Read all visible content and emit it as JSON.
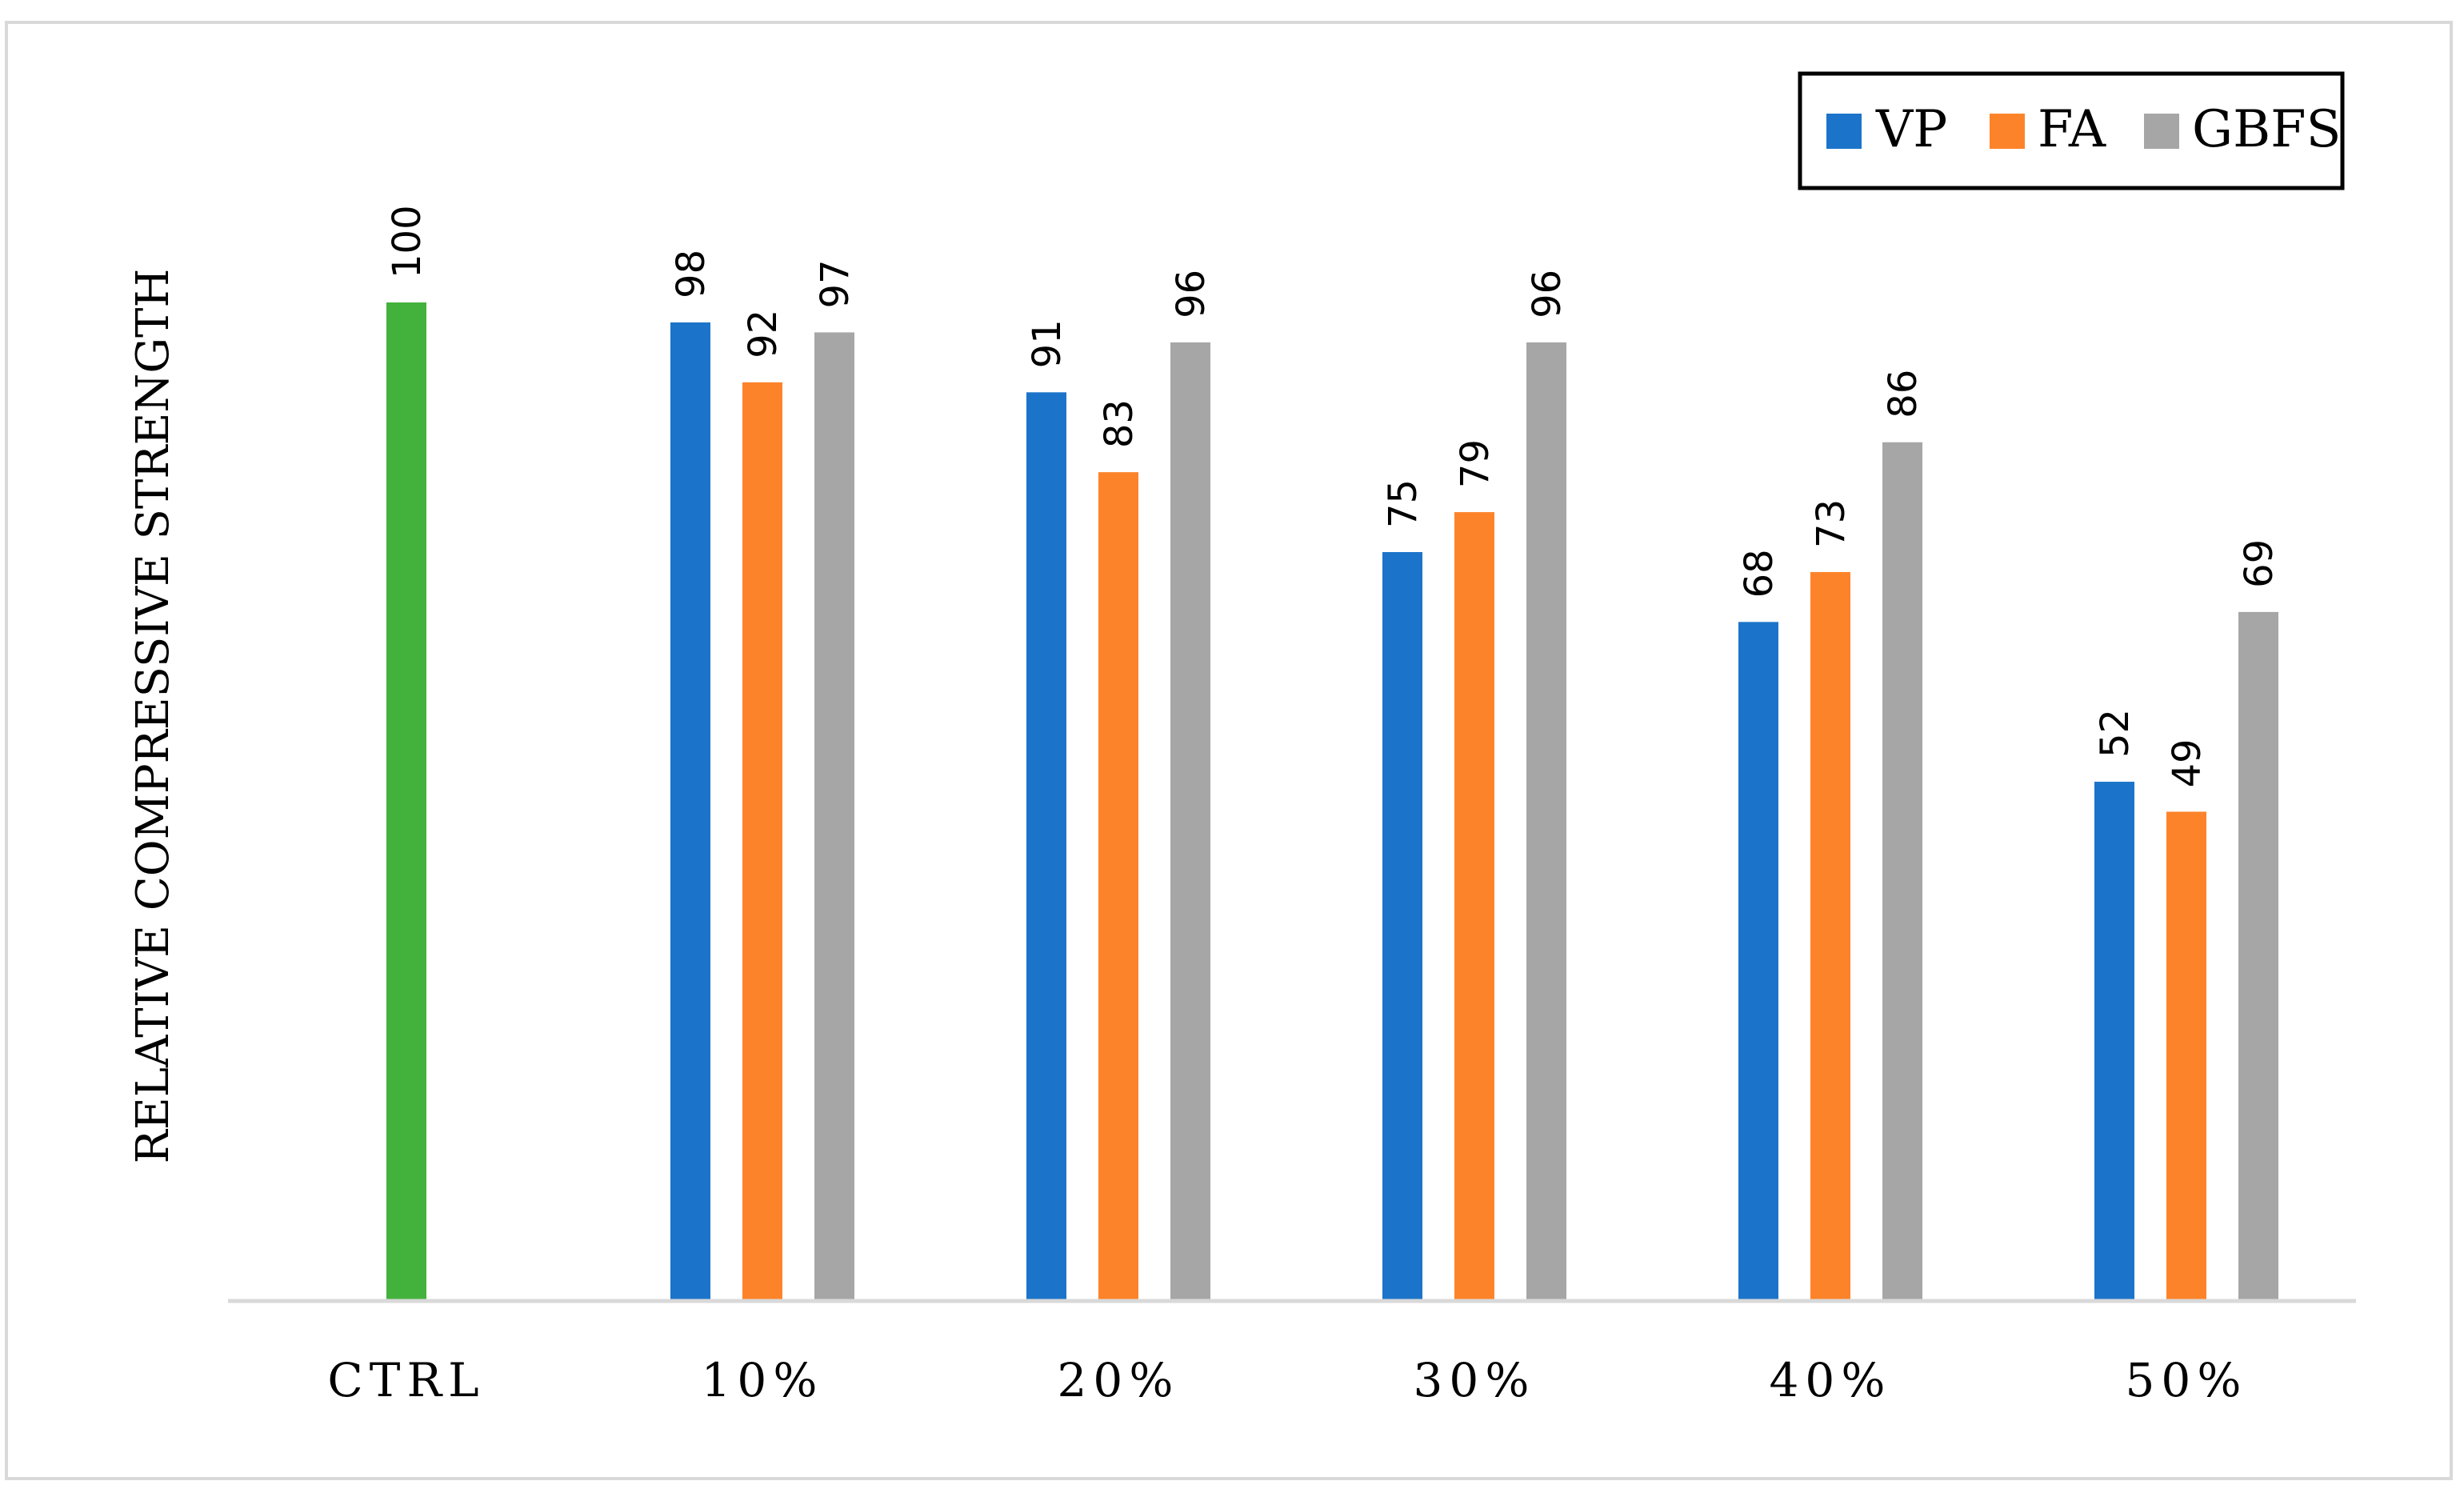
{
  "chart_data": {
    "type": "bar",
    "title": "",
    "xlabel": "",
    "ylabel": "RELATIVE COMPRESSIVE STRENGTH",
    "ylim": [
      0,
      100
    ],
    "grid": false,
    "legend_position": "top-right",
    "categories": [
      "CTRL",
      "10%",
      "20%",
      "30%",
      "40%",
      "50%"
    ],
    "control": {
      "name": "CTRL",
      "value": 100,
      "color": "#43B23C"
    },
    "series": [
      {
        "name": "VP",
        "color": "#1B74C9",
        "values": [
          null,
          98,
          91,
          75,
          68,
          52
        ]
      },
      {
        "name": "FA",
        "color": "#FD832A",
        "values": [
          null,
          92,
          83,
          79,
          73,
          49
        ]
      },
      {
        "name": "GBFS",
        "color": "#A6A6A6",
        "values": [
          null,
          97,
          96,
          96,
          86,
          69
        ]
      }
    ],
    "label_values": {
      "control": "100",
      "series": [
        [
          "",
          "98",
          "91",
          "75",
          "68",
          "52"
        ],
        [
          "",
          "92",
          "83",
          "79",
          "73",
          "49"
        ],
        [
          "",
          "97",
          "96",
          "96",
          "86",
          "69"
        ]
      ]
    }
  }
}
